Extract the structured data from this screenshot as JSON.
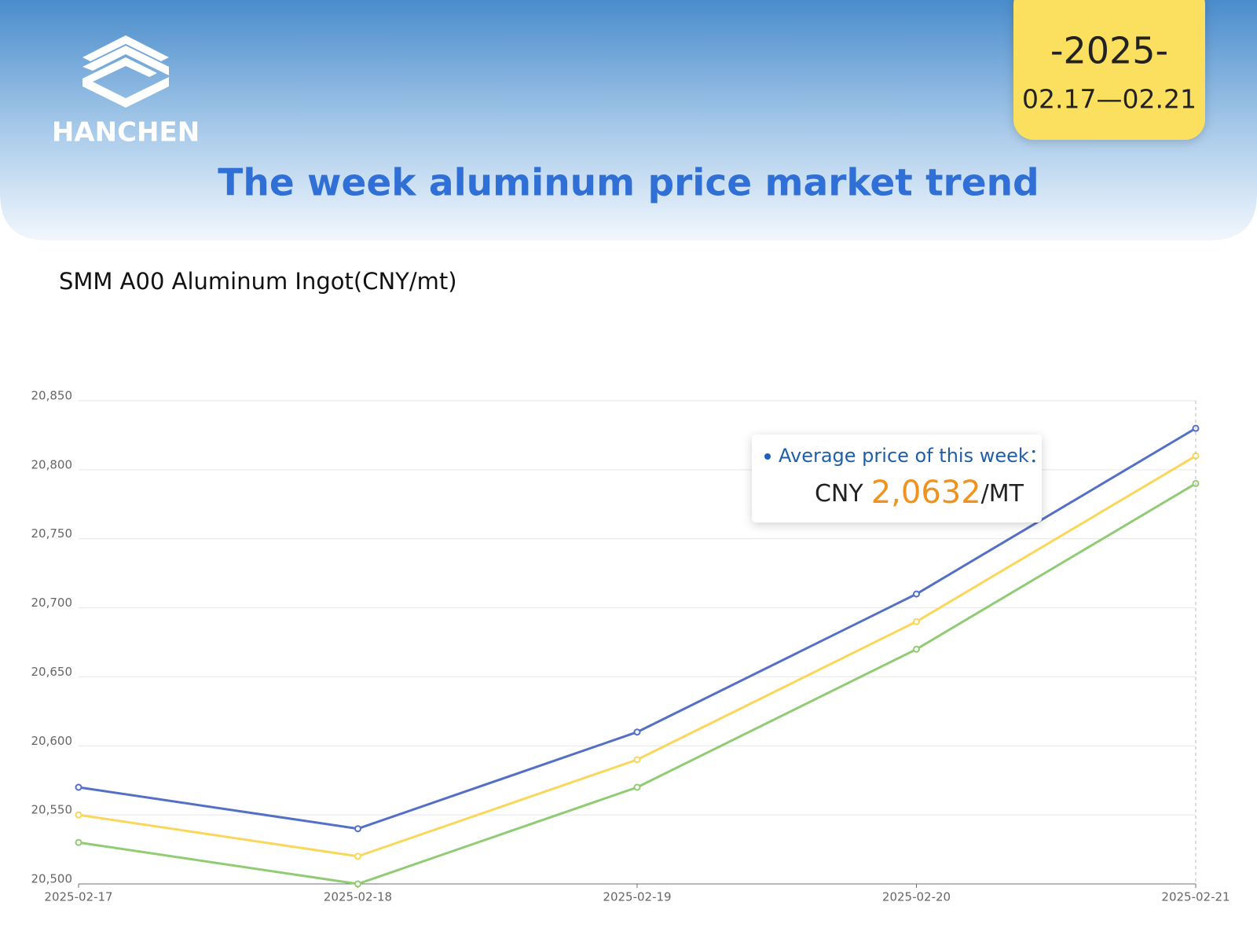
{
  "header": {
    "logo": "HANCHEN",
    "year": "-2025-",
    "dates": "02.17—02.21",
    "title": "The week aluminum price market trend"
  },
  "chart_data": {
    "type": "line",
    "title": "SMM A00 Aluminum Ingot(CNY/mt)",
    "categories": [
      "2025-02-17",
      "2025-02-18",
      "2025-02-19",
      "2025-02-20",
      "2025-02-21"
    ],
    "series": [
      {
        "color": "#5470c6",
        "values": [
          20570,
          20540,
          20610,
          20710,
          20830
        ]
      },
      {
        "color": "#fad75a",
        "values": [
          20550,
          20520,
          20590,
          20690,
          20810
        ]
      },
      {
        "color": "#91cc75",
        "values": [
          20530,
          20500,
          20570,
          20670,
          20790
        ]
      }
    ],
    "ylim": [
      20500,
      20850
    ],
    "yticks": [
      {
        "value": 20500,
        "label": "20,500"
      },
      {
        "value": 20550,
        "label": "20,550"
      },
      {
        "value": 20600,
        "label": "20,600"
      },
      {
        "value": 20650,
        "label": "20,650"
      },
      {
        "value": 20700,
        "label": "20,700"
      },
      {
        "value": 20750,
        "label": "20,750"
      },
      {
        "value": 20800,
        "label": "20,800"
      },
      {
        "value": 20850,
        "label": "20,850"
      }
    ],
    "grid": true,
    "annotation": {
      "label": "Average price of this week：",
      "currency": "CNY",
      "value": "2,0632",
      "unit": "/MT"
    }
  }
}
